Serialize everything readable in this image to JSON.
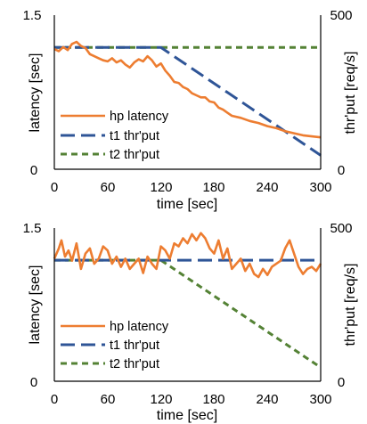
{
  "colors": {
    "hp": "#ED7D31",
    "t1": "#2F5597",
    "t2": "#548235"
  },
  "chart_data": [
    {
      "type": "line",
      "xlabel": "time [sec]",
      "ylabel_left": "latency [sec]",
      "ylabel_right": "thr'put [req/s]",
      "xlim": [
        0,
        300
      ],
      "ylim_left": [
        0,
        1.5
      ],
      "ylim_right": [
        0,
        500
      ],
      "x_ticks": [
        "0",
        "60",
        "120",
        "180",
        "240",
        "300"
      ],
      "y_left_ticks": [
        "0",
        "1.5"
      ],
      "y_right_ticks": [
        "0",
        "500"
      ],
      "grid": false,
      "legend": "bottom-left",
      "series": [
        {
          "name": "hp latency",
          "axis": "left",
          "style": "solid",
          "x": [
            0,
            5,
            10,
            15,
            20,
            25,
            30,
            35,
            40,
            45,
            50,
            55,
            60,
            65,
            70,
            75,
            80,
            85,
            90,
            95,
            100,
            105,
            110,
            115,
            120,
            125,
            130,
            135,
            140,
            145,
            150,
            155,
            160,
            165,
            170,
            175,
            180,
            185,
            190,
            195,
            200,
            210,
            220,
            230,
            240,
            250,
            260,
            270,
            280,
            290,
            300
          ],
          "y": [
            1.17,
            1.15,
            1.19,
            1.16,
            1.22,
            1.24,
            1.2,
            1.18,
            1.12,
            1.1,
            1.08,
            1.06,
            1.05,
            1.08,
            1.04,
            1.06,
            1.02,
            0.99,
            1.04,
            1.07,
            1.05,
            1.1,
            1.06,
            1.0,
            1.03,
            0.96,
            0.91,
            0.85,
            0.84,
            0.8,
            0.78,
            0.74,
            0.72,
            0.7,
            0.7,
            0.66,
            0.65,
            0.6,
            0.58,
            0.55,
            0.52,
            0.5,
            0.47,
            0.45,
            0.42,
            0.4,
            0.37,
            0.35,
            0.33,
            0.32,
            0.31
          ]
        },
        {
          "name": "t1 thr'put",
          "axis": "right",
          "style": "dash",
          "x": [
            0,
            120,
            300
          ],
          "y": [
            395,
            395,
            45
          ]
        },
        {
          "name": "t2 thr'put",
          "axis": "right",
          "style": "dot",
          "x": [
            0,
            300
          ],
          "y": [
            395,
            395
          ]
        }
      ]
    },
    {
      "type": "line",
      "xlabel": "time [sec]",
      "ylabel_left": "latency [sec]",
      "ylabel_right": "thr'put [req/s]",
      "xlim": [
        0,
        300
      ],
      "ylim_left": [
        0,
        1.5
      ],
      "ylim_right": [
        0,
        500
      ],
      "x_ticks": [
        "0",
        "60",
        "120",
        "180",
        "240",
        "300"
      ],
      "y_left_ticks": [
        "0",
        "1.5"
      ],
      "y_right_ticks": [
        "0",
        "500"
      ],
      "grid": false,
      "legend": "bottom-left",
      "series": [
        {
          "name": "hp latency",
          "axis": "left",
          "style": "solid",
          "x": [
            0,
            5,
            8,
            12,
            16,
            20,
            25,
            30,
            35,
            40,
            45,
            50,
            55,
            60,
            65,
            70,
            75,
            80,
            85,
            90,
            95,
            100,
            105,
            110,
            115,
            120,
            125,
            130,
            135,
            140,
            145,
            150,
            155,
            160,
            165,
            170,
            175,
            180,
            185,
            190,
            195,
            200,
            205,
            210,
            215,
            220,
            225,
            230,
            235,
            240,
            245,
            250,
            255,
            260,
            265,
            270,
            275,
            280,
            285,
            290,
            295,
            300
          ],
          "y": [
            1.2,
            1.3,
            1.38,
            1.22,
            1.28,
            1.18,
            1.35,
            1.1,
            1.25,
            1.3,
            1.15,
            1.2,
            1.32,
            1.28,
            1.15,
            1.22,
            1.12,
            1.2,
            1.1,
            1.15,
            1.2,
            1.06,
            1.22,
            1.15,
            1.1,
            1.32,
            1.28,
            1.2,
            1.35,
            1.32,
            1.4,
            1.35,
            1.44,
            1.38,
            1.45,
            1.4,
            1.3,
            1.25,
            1.38,
            1.2,
            1.3,
            1.1,
            1.15,
            1.2,
            1.08,
            1.15,
            1.05,
            1.02,
            1.1,
            1.04,
            1.12,
            1.15,
            1.18,
            1.3,
            1.38,
            1.25,
            1.12,
            1.05,
            1.1,
            1.12,
            1.08,
            1.15
          ]
        },
        {
          "name": "t1 thr'put",
          "axis": "right",
          "style": "dash",
          "x": [
            0,
            300
          ],
          "y": [
            395,
            395
          ]
        },
        {
          "name": "t2 thr'put",
          "axis": "right",
          "style": "dot",
          "x": [
            0,
            120,
            300
          ],
          "y": [
            395,
            395,
            45
          ]
        }
      ]
    }
  ]
}
